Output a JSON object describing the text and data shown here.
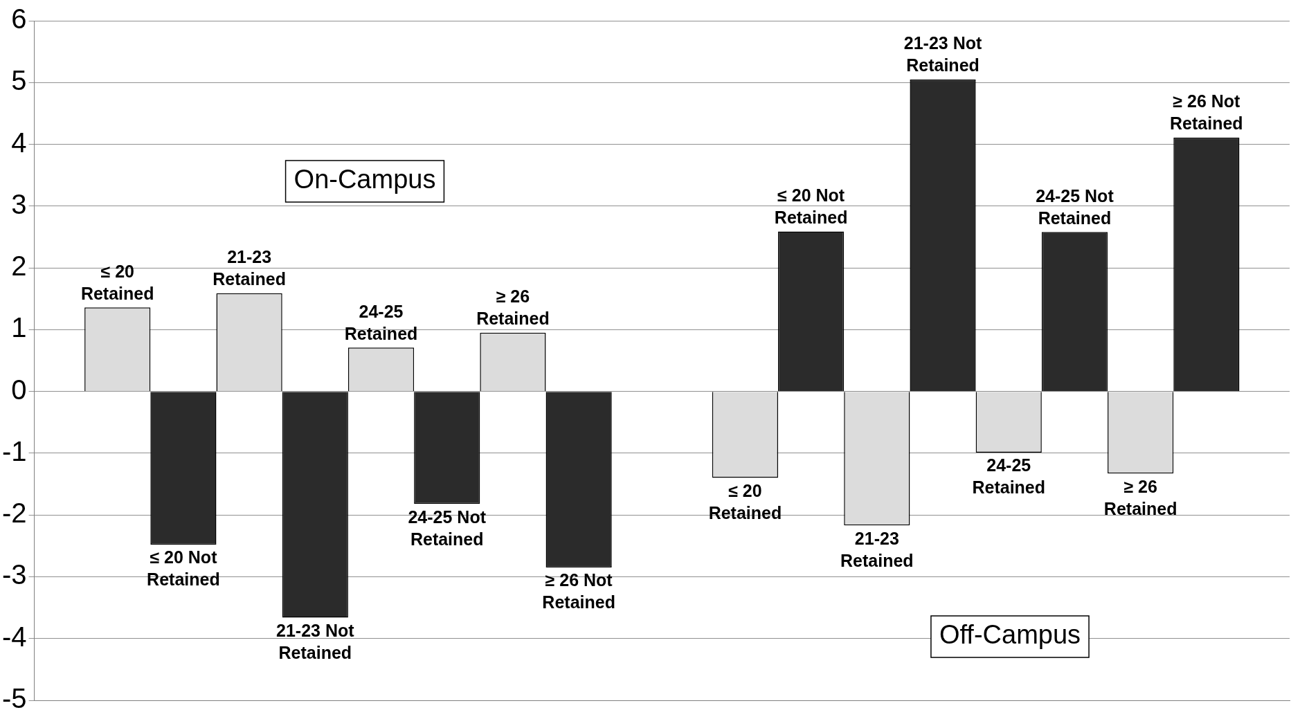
{
  "chart_data": {
    "type": "bar",
    "categories": [
      null,
      null
    ],
    "series": [
      {
        "name": "≤ 20 Retained",
        "color": "#dcdcdc",
        "values": [
          1.36,
          -1.4
        ]
      },
      {
        "name": "≤ 20 Not Retained",
        "color": "#2b2b2b",
        "values": [
          -2.48,
          2.59
        ]
      },
      {
        "name": "21-23 Retained",
        "color": "#dcdcdc",
        "values": [
          1.59,
          -2.17
        ]
      },
      {
        "name": "21-23 Not Retained",
        "color": "#2b2b2b",
        "values": [
          -3.66,
          5.05
        ]
      },
      {
        "name": "24-25 Retained",
        "color": "#dcdcdc",
        "values": [
          0.71,
          -0.99
        ]
      },
      {
        "name": "24-25 Not Retained",
        "color": "#2b2b2b",
        "values": [
          -1.82,
          2.58
        ]
      },
      {
        "name": "≥ 26 Retained",
        "color": "#dcdcdc",
        "values": [
          0.95,
          -1.33
        ]
      },
      {
        "name": "≥ 26 Not Retained",
        "color": "#2b2b2b",
        "values": [
          -2.85,
          4.11
        ]
      }
    ],
    "annotations": [
      "On-Campus",
      "Off-Campus"
    ],
    "ylim": [
      -5,
      6
    ],
    "yticks": [
      -5,
      -4,
      -3,
      -2,
      -1,
      0,
      1,
      2,
      3,
      4,
      5,
      6
    ],
    "grid": "y",
    "legend": false
  }
}
